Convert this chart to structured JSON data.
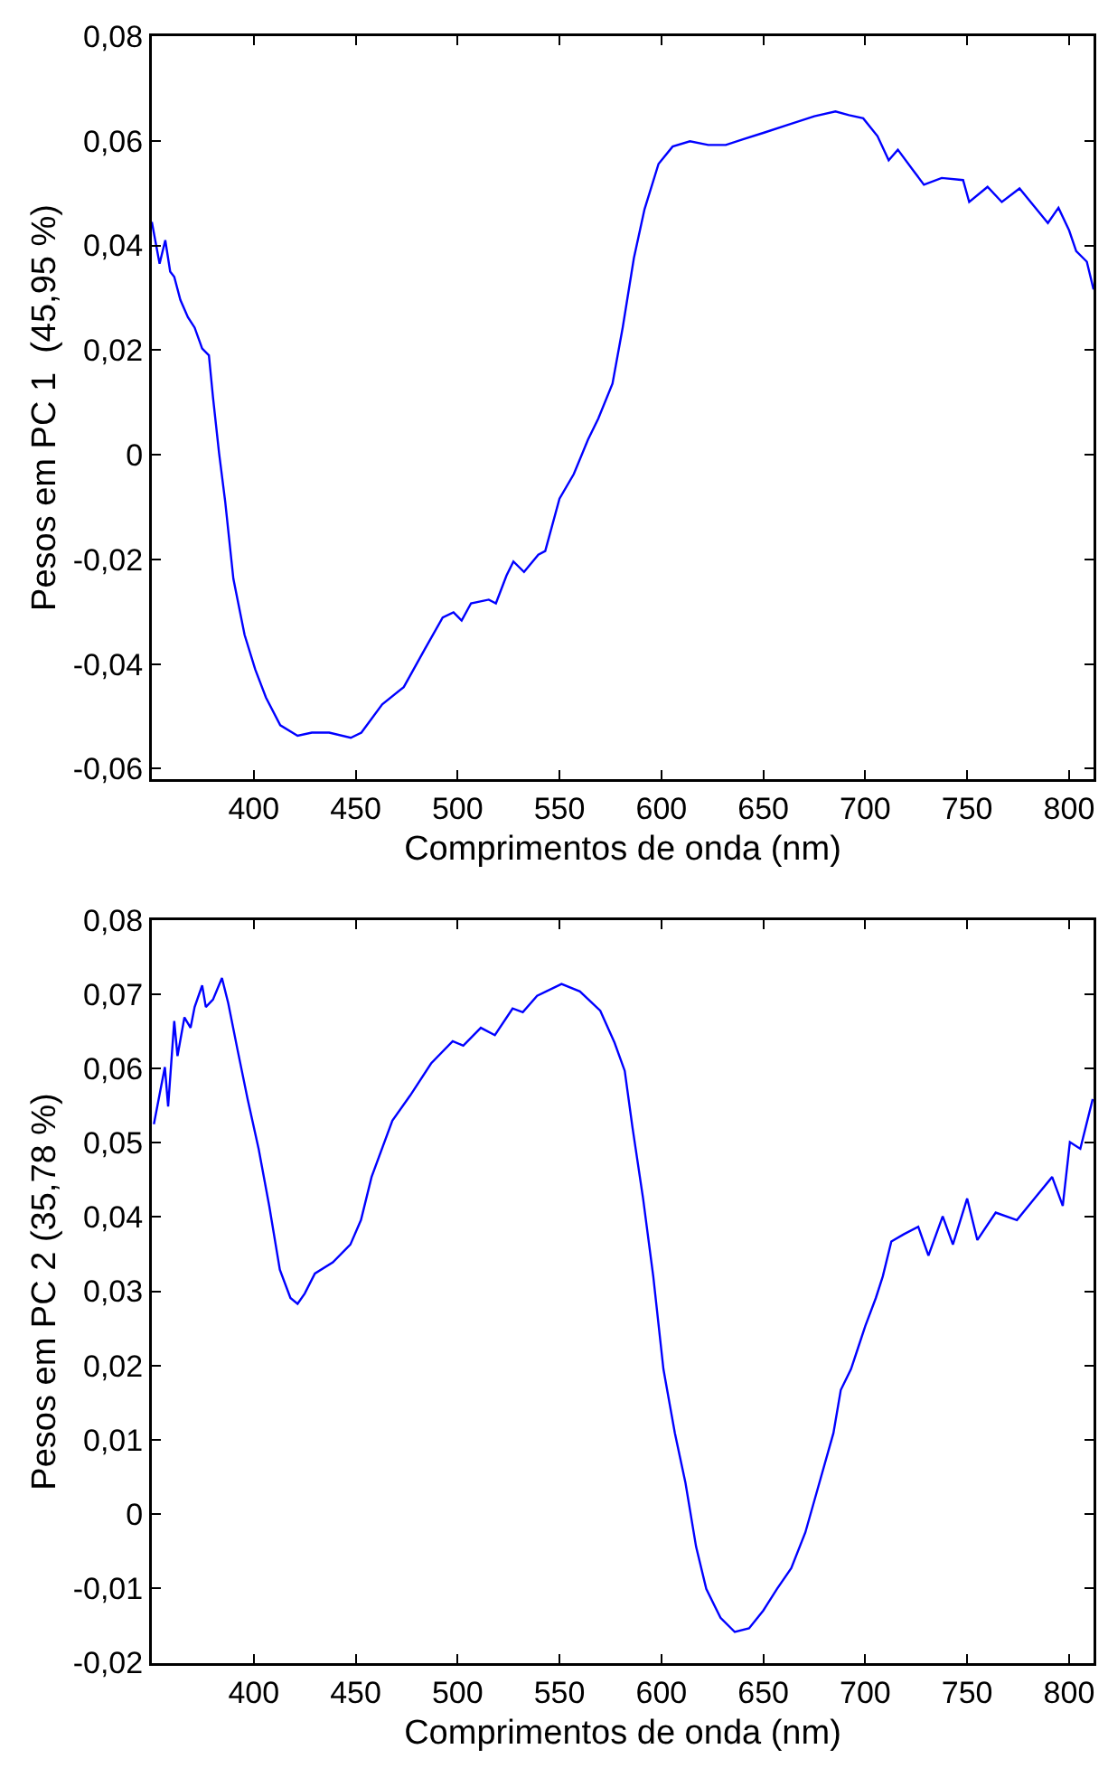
{
  "chart_data": [
    {
      "type": "line",
      "xlabel": "Comprimentos de onda (nm)",
      "ylabel": "Pesos em PC 1  (45,95 %)",
      "marker": "none",
      "line_style": "solid",
      "xlim": [
        350,
        812
      ],
      "xticks": [
        400,
        450,
        500,
        550,
        600,
        650,
        700,
        750,
        800
      ],
      "ylim": [
        -0.062,
        0.08
      ],
      "yticks": [
        {
          "value": -0.06,
          "label": "-0,06"
        },
        {
          "value": -0.04,
          "label": "-0,04"
        },
        {
          "value": -0.02,
          "label": "-0,02"
        },
        0,
        {
          "value": 0.02,
          "label": "0,02"
        },
        {
          "value": 0.04,
          "label": "0,04"
        },
        {
          "value": 0.06,
          "label": "0,06"
        },
        {
          "value": 0.08,
          "label": "0,08"
        }
      ],
      "series": [
        {
          "color": "#0000ff",
          "x": [
            350,
            353.8,
            356.6,
            359,
            361,
            364,
            367.7,
            371,
            374.7,
            378,
            380,
            383,
            386,
            390,
            395.5,
            400.7,
            406,
            413,
            421.5,
            428.5,
            437,
            447.6,
            452.8,
            463,
            473.6,
            484,
            492.7,
            498,
            502,
            506.6,
            515.3,
            518.8,
            524,
            527.4,
            532.6,
            539.6,
            543,
            550,
            557,
            564,
            569,
            576,
            581,
            586.5,
            591.7,
            598.6,
            605.5,
            614,
            623,
            631.6,
            640,
            650.7,
            661,
            675,
            685.4,
            692,
            699,
            706,
            711.5,
            716,
            723.6,
            728.8,
            737.5,
            748,
            751,
            760,
            767,
            775.7,
            782.6,
            789.6,
            794.8,
            800,
            803.5,
            808.7,
            812
          ],
          "values": [
            0.0445,
            0.0365,
            0.041,
            0.035,
            0.034,
            0.0296,
            0.0263,
            0.0243,
            0.0203,
            0.019,
            0.011,
            0.0003,
            -0.009,
            -0.0237,
            -0.0344,
            -0.041,
            -0.0464,
            -0.0517,
            -0.0537,
            -0.0531,
            -0.0531,
            -0.0541,
            -0.0531,
            -0.0477,
            -0.0444,
            -0.0371,
            -0.0311,
            -0.0301,
            -0.0317,
            -0.0284,
            -0.0277,
            -0.0284,
            -0.0231,
            -0.0204,
            -0.0224,
            -0.0191,
            -0.0184,
            -0.0084,
            -0.0037,
            0.0029,
            0.0069,
            0.0136,
            0.0243,
            0.0376,
            0.0469,
            0.0556,
            0.0589,
            0.0599,
            0.0592,
            0.0592,
            0.0603,
            0.0616,
            0.0629,
            0.0647,
            0.0656,
            0.0649,
            0.0643,
            0.0609,
            0.0563,
            0.0583,
            0.0543,
            0.0516,
            0.0529,
            0.0525,
            0.0483,
            0.0512,
            0.0483,
            0.0509,
            0.0476,
            0.0443,
            0.0472,
            0.0429,
            0.0389,
            0.0369,
            0.0316
          ]
        }
      ]
    },
    {
      "type": "line",
      "xlabel": "Comprimentos de onda (nm)",
      "ylabel": "Pesos em PC 2 (35,78 %)",
      "marker": "none",
      "line_style": "solid",
      "xlim": [
        350,
        812
      ],
      "xticks": [
        400,
        450,
        500,
        550,
        600,
        650,
        700,
        750,
        800
      ],
      "ylim": [
        -0.0201,
        0.08
      ],
      "yticks": [
        {
          "value": -0.02,
          "label": "-0,02"
        },
        {
          "value": -0.01,
          "label": "-0,01"
        },
        0,
        {
          "value": 0.01,
          "label": "0,01"
        },
        {
          "value": 0.02,
          "label": "0,02"
        },
        {
          "value": 0.03,
          "label": "0,03"
        },
        {
          "value": 0.04,
          "label": "0,04"
        },
        {
          "value": 0.05,
          "label": "0,05"
        },
        {
          "value": 0.06,
          "label": "0,06"
        },
        {
          "value": 0.07,
          "label": "0,07"
        },
        {
          "value": 0.08,
          "label": "0,08"
        }
      ],
      "series": [
        {
          "color": "#0000ff",
          "x": [
            351,
            354,
            356.4,
            358,
            361,
            362.6,
            366,
            369,
            371,
            374.7,
            376.5,
            380,
            384.4,
            387.5,
            392,
            397,
            402.4,
            407.6,
            412.8,
            418,
            421.5,
            425,
            430,
            438.8,
            447.4,
            452.6,
            457.8,
            468,
            476.8,
            487,
            497.6,
            502.8,
            511.4,
            518.3,
            527,
            532,
            539,
            551,
            560,
            570,
            577,
            582,
            585.8,
            591,
            596,
            601,
            606.6,
            611.8,
            617,
            622,
            629,
            636,
            643,
            650,
            656.7,
            663.7,
            670.6,
            677.5,
            684.4,
            688,
            693,
            696.5,
            700,
            705.2,
            708.6,
            712.8,
            719,
            726,
            731,
            738,
            743,
            750,
            755,
            764,
            774.4,
            783,
            791.7,
            796.9,
            800.4,
            805.5,
            811.6
          ],
          "values": [
            0.0525,
            0.0568,
            0.0602,
            0.0549,
            0.0664,
            0.0617,
            0.0669,
            0.0655,
            0.0683,
            0.0712,
            0.0683,
            0.0693,
            0.0722,
            0.0688,
            0.0626,
            0.0559,
            0.0492,
            0.0415,
            0.0329,
            0.0291,
            0.0283,
            0.0297,
            0.0324,
            0.0339,
            0.0363,
            0.0396,
            0.0454,
            0.053,
            0.0564,
            0.0607,
            0.0637,
            0.0631,
            0.0655,
            0.0645,
            0.0681,
            0.0676,
            0.0698,
            0.0714,
            0.0704,
            0.0678,
            0.0635,
            0.0597,
            0.0521,
            0.0425,
            0.032,
            0.0195,
            0.0109,
            0.0042,
            -0.0044,
            -0.0101,
            -0.014,
            -0.0159,
            -0.0154,
            -0.013,
            -0.0101,
            -0.0073,
            -0.0025,
            0.0042,
            0.0109,
            0.0167,
            0.0195,
            0.0224,
            0.0253,
            0.0291,
            0.032,
            0.0367,
            0.0377,
            0.0387,
            0.0348,
            0.0401,
            0.0363,
            0.0425,
            0.0369,
            0.0406,
            0.0396,
            0.0425,
            0.0454,
            0.0415,
            0.0501,
            0.0492,
            0.0559
          ]
        }
      ]
    }
  ]
}
